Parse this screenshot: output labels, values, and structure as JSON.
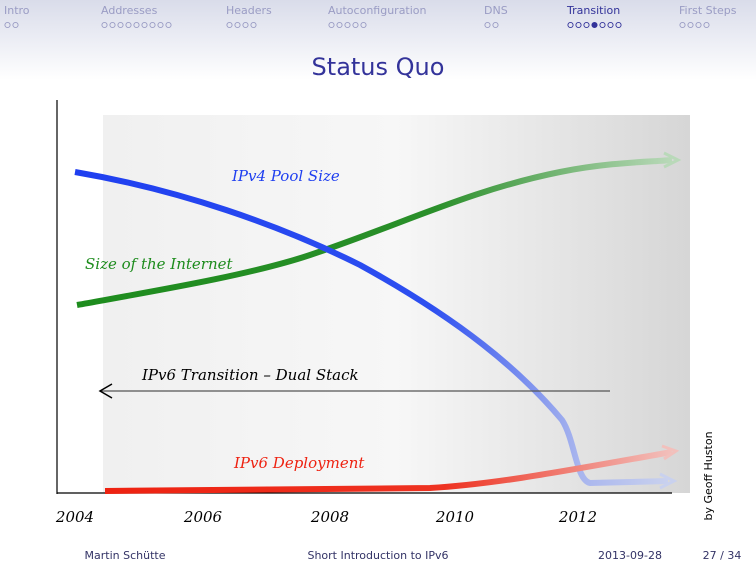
{
  "nav": {
    "sections": [
      {
        "label": "Intro",
        "pages": 2
      },
      {
        "label": "Addresses",
        "pages": 9
      },
      {
        "label": "Headers",
        "pages": 4
      },
      {
        "label": "Autoconfiguration",
        "pages": 5
      },
      {
        "label": "DNS",
        "pages": 2
      },
      {
        "label": "Transition",
        "pages": 7,
        "current_page": 4
      },
      {
        "label": "First Steps",
        "pages": 4
      }
    ]
  },
  "title": "Status Quo",
  "figure": {
    "labels": {
      "ipv4_pool": "IPv4 Pool Size",
      "internet": "Size of the Internet",
      "transition": "IPv6 Transition – Dual Stack",
      "deployment": "IPv6 Deployment"
    },
    "years": [
      "2004",
      "2006",
      "2008",
      "2010",
      "2012"
    ],
    "credit": "by Geoff Huston"
  },
  "footer": {
    "author": "Martin Schütte",
    "short_title": "Short Introduction to IPv6",
    "date": "2013-09-28",
    "page": "27 / 34"
  }
}
